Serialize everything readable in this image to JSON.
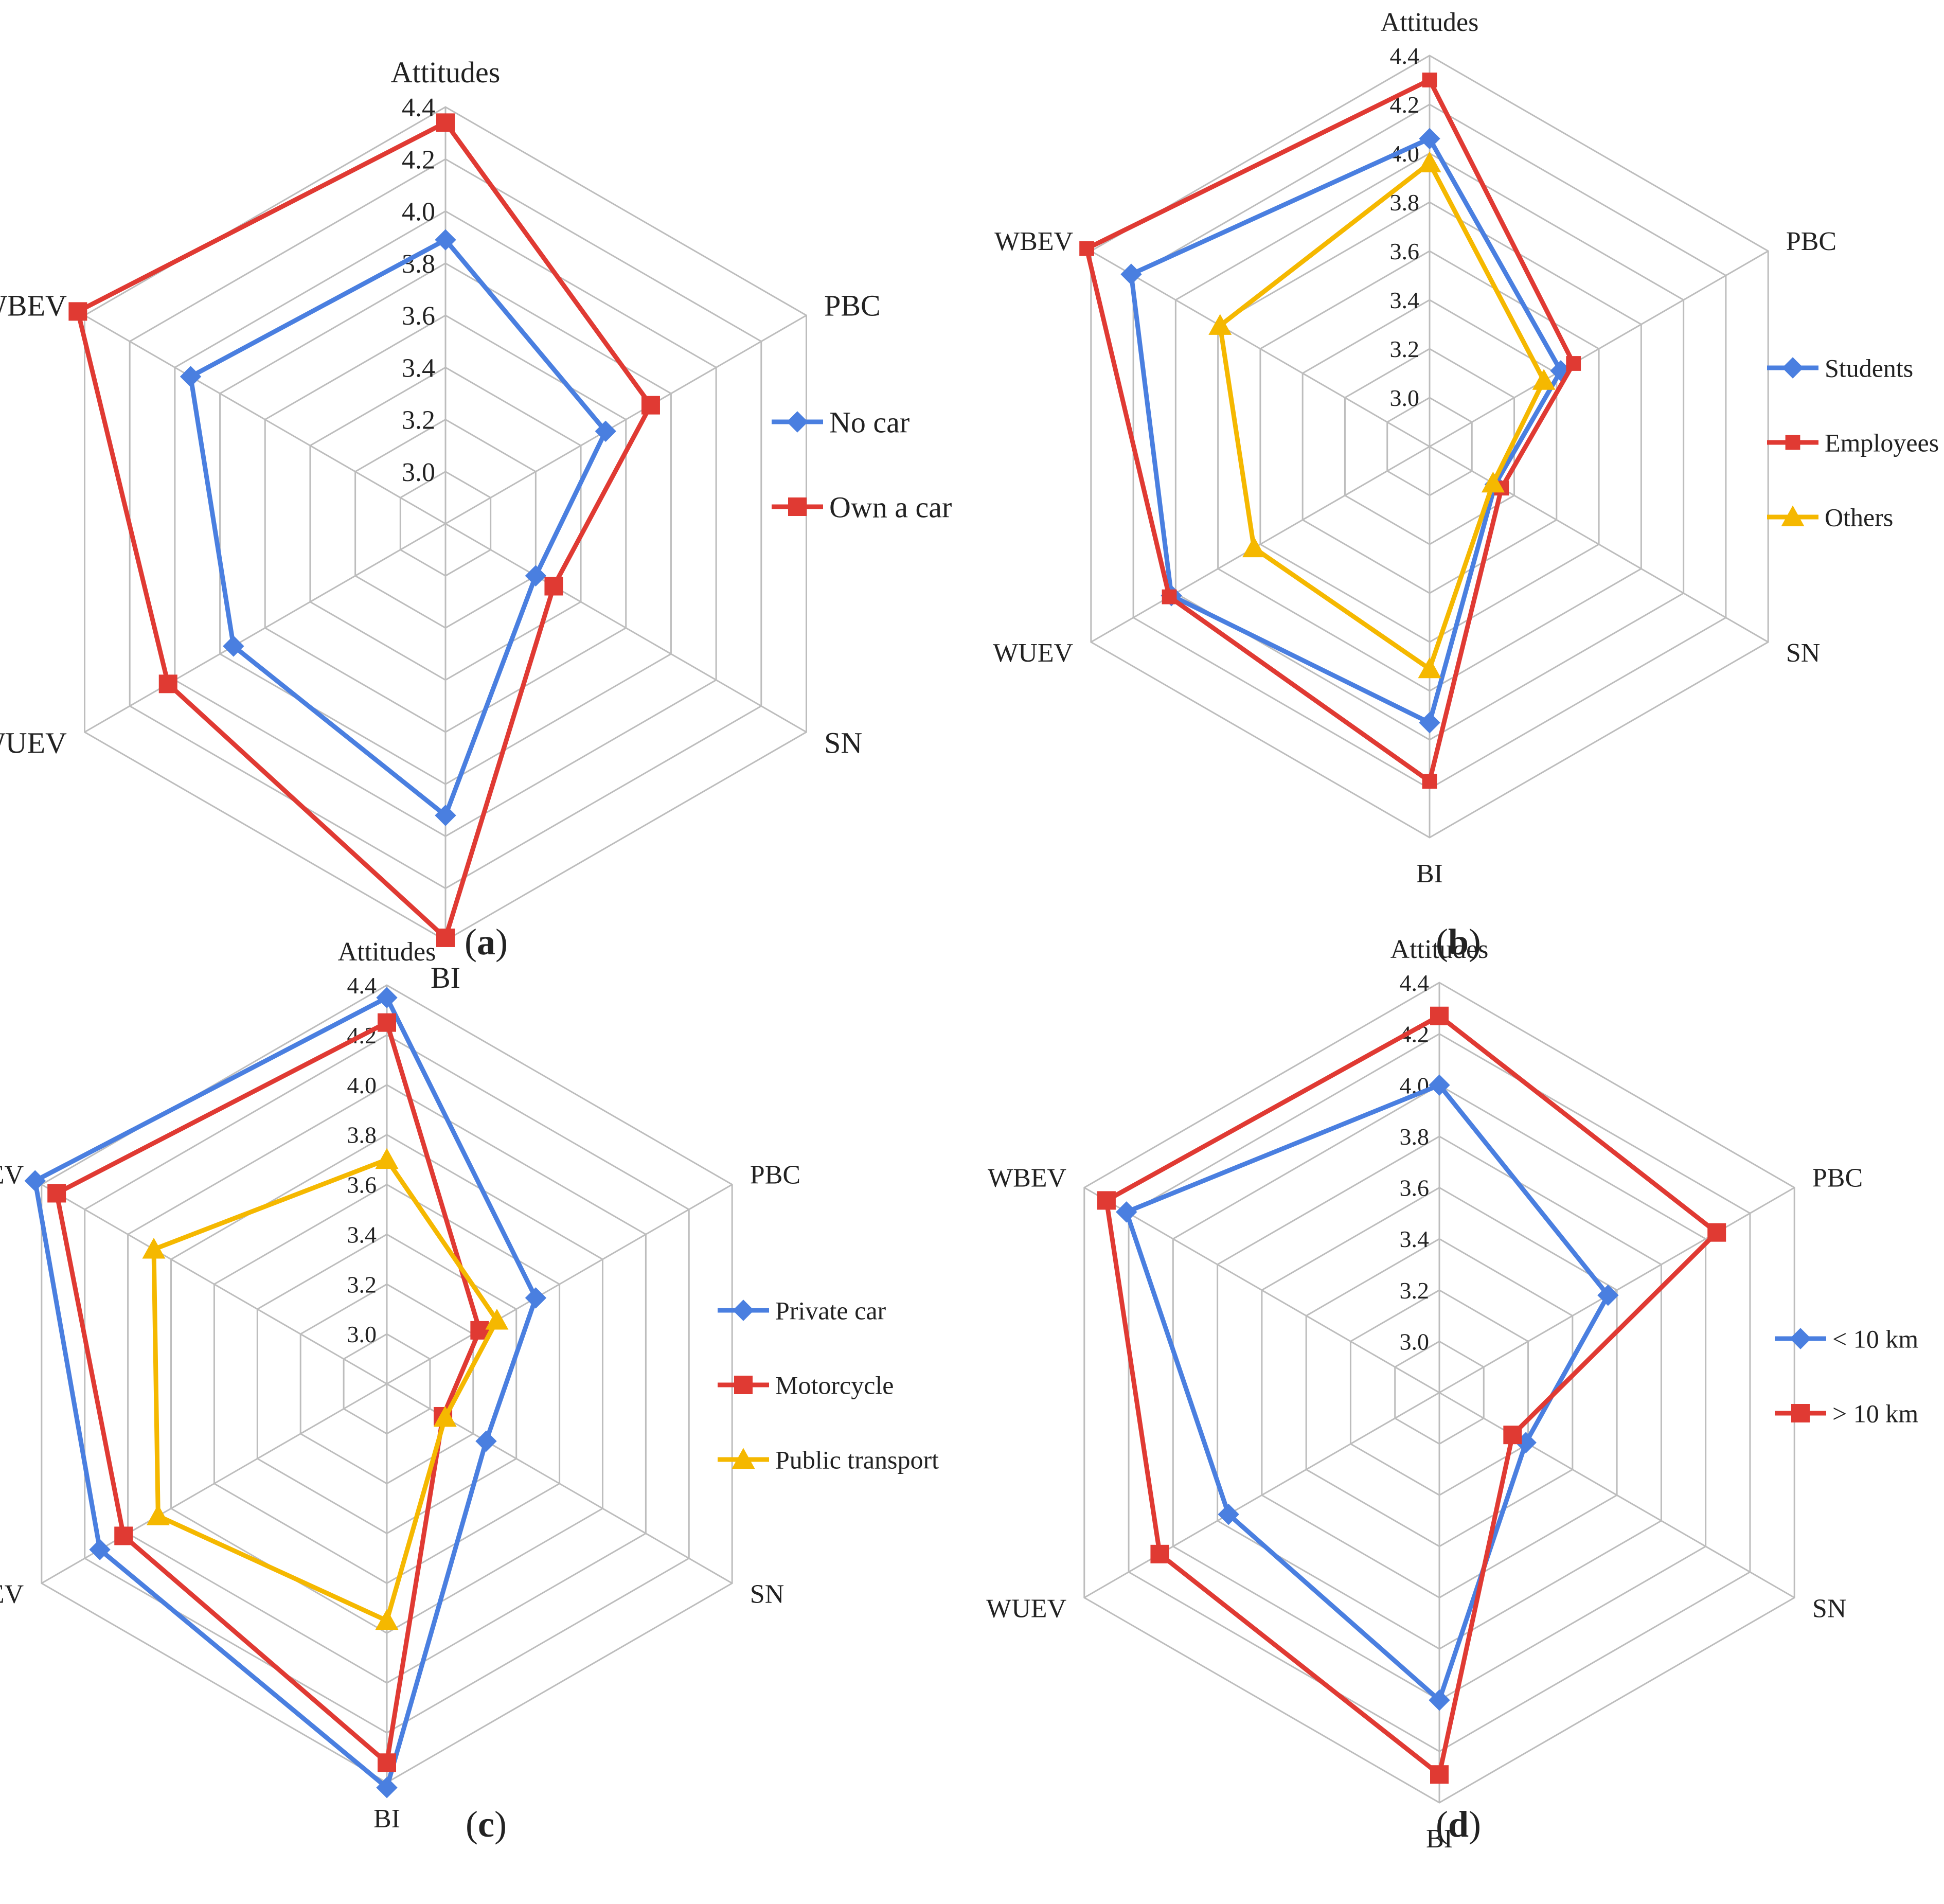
{
  "figure": {
    "panels": [
      {
        "label_prefix": "(",
        "label_letter": "a",
        "label_suffix": ")",
        "chart_data": {
          "type": "radar",
          "axes": [
            "Attitudes",
            "PBC",
            "SN",
            "BI",
            "WUEV",
            "WBEV"
          ],
          "ticks": [
            "3.0",
            "3.2",
            "3.4",
            "3.6",
            "3.8",
            "4.0",
            "4.2",
            "4.4"
          ],
          "range": [
            2.8,
            4.4
          ],
          "series": [
            {
              "name": "No car",
              "color": "#4a7fe0",
              "marker": "diamond",
              "values": [
                3.89,
                3.51,
                3.2,
                3.92,
                3.74,
                3.93
              ]
            },
            {
              "name": "Own a car",
              "color": "#e03a33",
              "marker": "square",
              "values": [
                4.34,
                3.71,
                3.28,
                4.39,
                4.03,
                4.43
              ]
            }
          ],
          "legend": "right"
        }
      },
      {
        "label_prefix": "(",
        "label_letter": "b",
        "label_suffix": ")",
        "chart_data": {
          "type": "radar",
          "axes": [
            "Attitudes",
            "PBC",
            "SN",
            "BI",
            "WUEV",
            "WBEV"
          ],
          "ticks": [
            "3.0",
            "3.2",
            "3.4",
            "3.6",
            "3.8",
            "4.0",
            "4.2",
            "4.4"
          ],
          "range": [
            2.8,
            4.4
          ],
          "series": [
            {
              "name": "Students",
              "color": "#4a7fe0",
              "marker": "diamond",
              "values": [
                4.06,
                3.42,
                3.11,
                3.93,
                4.02,
                4.21
              ]
            },
            {
              "name": "Employees",
              "color": "#e03a33",
              "marker": "dash",
              "values": [
                4.3,
                3.48,
                3.14,
                4.17,
                4.03,
                4.42
              ]
            },
            {
              "name": "Others",
              "color": "#f5b800",
              "marker": "triangle",
              "values": [
                3.96,
                3.34,
                3.1,
                3.71,
                3.63,
                3.79
              ]
            }
          ],
          "legend": "right"
        }
      },
      {
        "label_prefix": "(",
        "label_letter": "c",
        "label_suffix": ")",
        "chart_data": {
          "type": "radar",
          "axes": [
            "Attitudes",
            "PBC",
            "SN",
            "BI",
            "WUEV",
            "WBEV"
          ],
          "ticks": [
            "3.0",
            "3.2",
            "3.4",
            "3.6",
            "3.8",
            "4.0",
            "4.2",
            "4.4"
          ],
          "range": [
            2.8,
            4.4
          ],
          "series": [
            {
              "name": "Private car",
              "color": "#4a7fe0",
              "marker": "diamond",
              "values": [
                4.35,
                3.49,
                3.26,
                4.42,
                4.13,
                4.43
              ]
            },
            {
              "name": "Motorcycle",
              "color": "#e03a33",
              "marker": "square",
              "values": [
                4.25,
                3.23,
                3.06,
                4.32,
                4.02,
                4.33
              ]
            },
            {
              "name": "Public transport",
              "color": "#f5b800",
              "marker": "triangle",
              "values": [
                3.7,
                3.31,
                3.07,
                3.75,
                3.86,
                3.88
              ]
            }
          ],
          "legend": "right"
        }
      },
      {
        "label_prefix": "(",
        "label_letter": "d",
        "label_suffix": ")",
        "chart_data": {
          "type": "radar",
          "axes": [
            "Attitudes",
            "PBC",
            "SN",
            "BI",
            "WUEV",
            "WBEV"
          ],
          "ticks": [
            "3.0",
            "3.2",
            "3.4",
            "3.6",
            "3.8",
            "4.0",
            "4.2",
            "4.4"
          ],
          "range": [
            2.8,
            4.4
          ],
          "series": [
            {
              "name": "< 10 km",
              "color": "#4a7fe0",
              "marker": "diamond",
              "values": [
                4.0,
                3.56,
                3.19,
                4.0,
                3.75,
                4.21
              ]
            },
            {
              "name": "> 10 km",
              "color": "#e03a33",
              "marker": "square",
              "values": [
                4.27,
                4.05,
                3.13,
                4.29,
                4.06,
                4.3
              ]
            }
          ],
          "legend": "right"
        }
      }
    ]
  }
}
